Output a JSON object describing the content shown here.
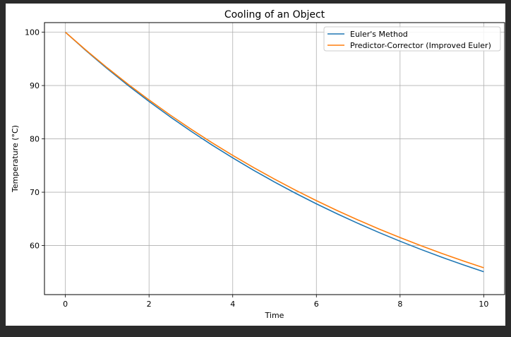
{
  "chart_data": {
    "type": "line",
    "title": "Cooling of an Object",
    "xlabel": "Time",
    "ylabel": "Temperature (°C)",
    "xlim": [
      -0.5,
      10.5
    ],
    "ylim": [
      50.8,
      101.8
    ],
    "xticks": [
      0,
      2,
      4,
      6,
      8,
      10
    ],
    "yticks": [
      60,
      70,
      80,
      90,
      100
    ],
    "grid": true,
    "legend_position": "top-right",
    "series": [
      {
        "name": "Euler's Method",
        "color": "#1f77b4",
        "x": [
          0,
          0.5,
          1,
          1.5,
          2,
          2.5,
          3,
          3.5,
          4,
          4.5,
          5,
          5.5,
          6,
          6.5,
          7,
          7.5,
          8,
          8.5,
          9,
          9.5,
          10
        ],
        "values": [
          100.0,
          96.5,
          93.17,
          90.01,
          87.01,
          84.16,
          81.45,
          78.88,
          76.44,
          74.11,
          71.91,
          69.81,
          67.82,
          65.93,
          64.14,
          62.43,
          60.81,
          59.27,
          57.8,
          56.41,
          55.09
        ]
      },
      {
        "name": "Predictor-Corrector (Improved Euler)",
        "color": "#ff7f0e",
        "x": [
          0,
          0.5,
          1,
          1.5,
          2,
          2.5,
          3,
          3.5,
          4,
          4.5,
          5,
          5.5,
          6,
          6.5,
          7,
          7.5,
          8,
          8.5,
          9,
          9.5,
          10
        ],
        "values": [
          100.0,
          96.58,
          93.33,
          90.24,
          87.3,
          84.5,
          81.84,
          79.31,
          76.91,
          74.62,
          72.45,
          70.38,
          68.42,
          66.55,
          64.78,
          63.09,
          61.49,
          59.97,
          58.52,
          57.14,
          55.83
        ]
      }
    ]
  }
}
